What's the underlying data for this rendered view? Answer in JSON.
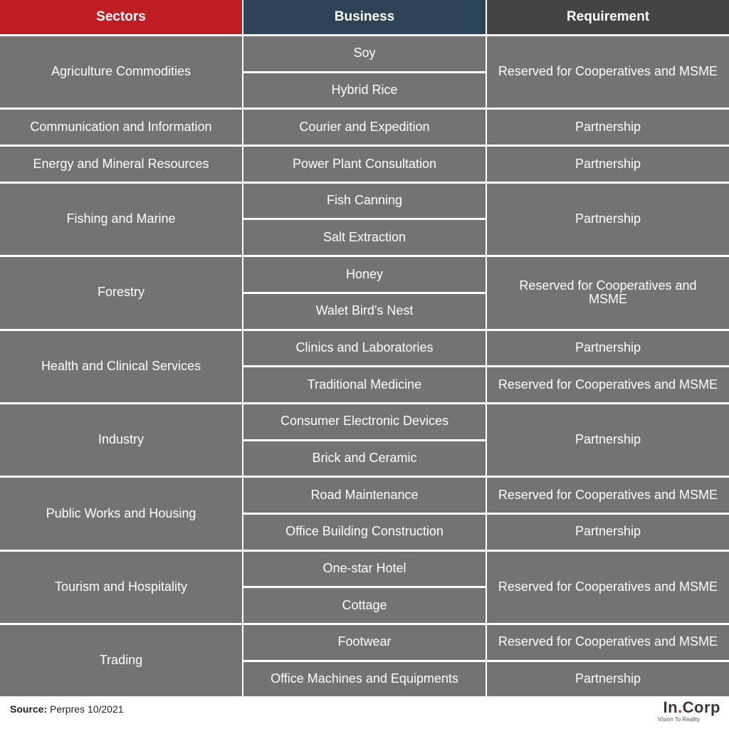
{
  "header": {
    "sectors": "Sectors",
    "business": "Business",
    "requirement": "Requirement"
  },
  "sectors": [
    "Agriculture Commodities",
    "Communication and Information",
    "Energy and Mineral Resources",
    "Fishing and Marine",
    "Forestry",
    "Health and Clinical Services",
    "Industry",
    "Public Works and Housing",
    "Tourism and Hospitality",
    "Trading"
  ],
  "business": [
    "Soy",
    "Hybrid Rice",
    "Courier and Expedition",
    "Power Plant Consultation",
    "Fish Canning",
    "Salt Extraction",
    "Honey",
    "Walet Bird's Nest",
    "Clinics and Laboratories",
    "Traditional Medicine",
    "Consumer Electronic Devices",
    "Brick and Ceramic",
    "Road Maintenance",
    "Office Building Construction",
    "One-star Hotel",
    "Cottage",
    "Footwear",
    "Office Machines and Equipments"
  ],
  "requirement": [
    "Reserved for Cooperatives and MSME",
    "Partnership",
    "Partnership",
    "Partnership",
    "Reserved for Cooperatives and MSME",
    "Partnership",
    "Reserved for Cooperatives and MSME",
    "Partnership",
    "Reserved for Cooperatives and MSME",
    "Partnership",
    "Reserved for Cooperatives and MSME",
    "Reserved for Cooperatives and MSME",
    "Partnership"
  ],
  "footer": {
    "source_label": "Source:",
    "source_value": "Perpres 10/2021"
  },
  "logo": {
    "part1": "In",
    "dot": ".",
    "part2": "Corp",
    "tagline": "Vision To Reality"
  },
  "colors": {
    "sectors_header": "#be1e23",
    "business_header": "#2c4356",
    "requirement_header": "#444444",
    "cell_background": "#737373"
  }
}
